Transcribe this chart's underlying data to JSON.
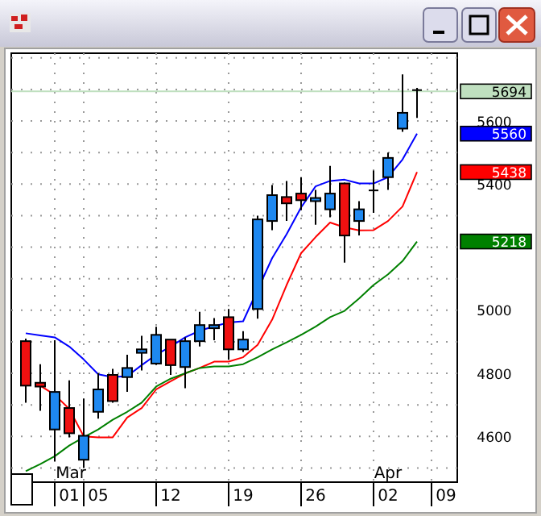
{
  "chart_data": {
    "type": "candlestick",
    "categories": [
      null,
      null,
      null,
      "01",
      null,
      "05",
      null,
      null,
      null,
      null,
      "12",
      null,
      null,
      null,
      null,
      "19",
      null,
      null,
      null,
      null,
      "26",
      null,
      null,
      null,
      null,
      "02",
      null,
      null,
      null,
      "09"
    ],
    "ohlc": [
      [
        4902,
        4910,
        4707,
        4761
      ],
      [
        4770,
        4829,
        4681,
        4758
      ],
      [
        4622,
        4905,
        4520,
        4741
      ],
      [
        4690,
        4778,
        4597,
        4610
      ],
      [
        4526,
        4720,
        4500,
        4602
      ],
      [
        4678,
        4800,
        4656,
        4749
      ],
      [
        4795,
        4814,
        4707,
        4712
      ],
      [
        4788,
        4859,
        4741,
        4817
      ],
      [
        4865,
        4919,
        4809,
        4876
      ],
      [
        4831,
        4948,
        4826,
        4922
      ],
      [
        4907,
        4907,
        4795,
        4826
      ],
      [
        4820,
        4914,
        4753,
        4902
      ],
      [
        4902,
        4995,
        4885,
        4953
      ],
      [
        4943,
        4975,
        4905,
        4953
      ],
      [
        4978,
        5004,
        4843,
        4876
      ],
      [
        4876,
        4934,
        4868,
        4907
      ],
      [
        5004,
        5300,
        4973,
        5288
      ],
      [
        5283,
        5397,
        5254,
        5365
      ],
      [
        5359,
        5410,
        5283,
        5339
      ],
      [
        5370,
        5422,
        5317,
        5349
      ],
      [
        5346,
        5382,
        5271,
        5356
      ],
      [
        5320,
        5458,
        5295,
        5370
      ],
      [
        5402,
        5405,
        5151,
        5237
      ],
      [
        5283,
        5346,
        5237,
        5320
      ],
      [
        5380,
        5443,
        5309,
        5380
      ],
      [
        5422,
        5500,
        5382,
        5483
      ],
      [
        5576,
        5748,
        5566,
        5626
      ],
      [
        5698,
        5705,
        5610,
        5694
      ],
      null,
      null
    ],
    "series": [
      {
        "type": "line",
        "color": "#0000ff",
        "values": [
          4927,
          4920,
          4914,
          4885,
          4844,
          4797,
          4788,
          4791,
          4826,
          4859,
          4885,
          4914,
          4935,
          4949,
          4961,
          4965,
          null,
          5165,
          5241,
          5326,
          5393,
          5410,
          5414,
          5402,
          5402,
          5422,
          5478,
          5560,
          null,
          null
        ]
      },
      {
        "type": "line",
        "color": "#ff0000",
        "values": [
          null,
          4761,
          4732,
          4687,
          4600,
          4597,
          4597,
          4660,
          4690,
          4749,
          4775,
          4800,
          4817,
          4837,
          4837,
          4851,
          4890,
          4970,
          5080,
          5181,
          5232,
          5278,
          5263,
          5253,
          5254,
          5283,
          5329,
          5438,
          null,
          null
        ]
      },
      {
        "type": "line",
        "color": "#008000",
        "values": [
          4490,
          4512,
          4537,
          4571,
          4597,
          4622,
          4653,
          4678,
          4707,
          4758,
          4783,
          4800,
          4817,
          4822,
          4822,
          4829,
          4851,
          4876,
          4898,
          4922,
          4948,
          4978,
          4998,
          5037,
          5080,
          5114,
          5156,
          5218,
          null,
          null
        ]
      }
    ],
    "ylim": [
      4455,
      5815
    ],
    "yticks": [
      {
        "value": 4500,
        "label": null
      },
      4600,
      {
        "value": 4700,
        "label": null
      },
      4800,
      {
        "value": 4900,
        "label": null
      },
      5000,
      {
        "value": 5100,
        "label": null
      },
      {
        "value": 5200,
        "label": null
      },
      {
        "value": 5300,
        "label": null
      },
      5400,
      {
        "value": 5500,
        "label": null
      },
      5600,
      {
        "value": 5700,
        "label": null
      },
      {
        "value": 5800,
        "label": null
      }
    ],
    "grid": true,
    "ref_lines": [
      {
        "axis": "y",
        "value": 5694,
        "label": "5694",
        "color": "#c0e0c0"
      }
    ],
    "annotations": [
      "5560",
      "5438",
      "5218",
      "Mar",
      "Apr"
    ]
  }
}
